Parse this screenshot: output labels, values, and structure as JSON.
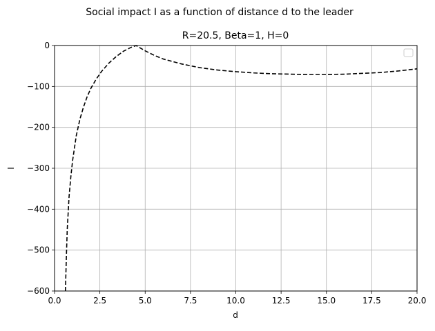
{
  "chart_data": {
    "type": "line",
    "suptitle": "Social impact I as a function of distance d to the leader",
    "title": "R=20.5, Beta=1, H=0",
    "xlabel": "d",
    "ylabel": "I",
    "xlim": [
      0,
      20
    ],
    "ylim": [
      -600,
      0
    ],
    "xticks": [
      0,
      2.5,
      5,
      7.5,
      10,
      12.5,
      15,
      17.5,
      20
    ],
    "xtick_labels": [
      "0.0",
      "2.5",
      "5.0",
      "7.5",
      "10.0",
      "12.5",
      "15.0",
      "17.5",
      "20.0"
    ],
    "yticks": [
      -600,
      -500,
      -400,
      -300,
      -200,
      -100,
      0
    ],
    "ytick_labels": [
      "−600",
      "−500",
      "−400",
      "−300",
      "−200",
      "−100",
      "0"
    ],
    "grid": true,
    "legend": {
      "position": "top-right",
      "entries": []
    },
    "series": [
      {
        "name": "",
        "style": "dashed",
        "color": "#000000",
        "x": [
          0.6,
          0.65,
          0.7,
          0.8,
          0.9,
          1.0,
          1.2,
          1.4,
          1.6,
          1.8,
          2.0,
          2.3,
          2.6,
          3.0,
          3.4,
          3.8,
          4.2,
          4.5,
          5.0,
          5.5,
          6.0,
          7.0,
          8.0,
          9.0,
          10.0,
          11.0,
          12.0,
          13.0,
          14.0,
          15.0,
          16.0,
          17.0,
          18.0,
          19.0,
          20.0
        ],
        "y": [
          -600,
          -520,
          -450,
          -370,
          -320,
          -280,
          -220,
          -180,
          -150,
          -125,
          -105,
          -82,
          -63,
          -43,
          -27,
          -14,
          -5,
          0,
          -13,
          -24,
          -33,
          -45,
          -54,
          -60,
          -64,
          -67,
          -69,
          -70,
          -71,
          -71,
          -70,
          -68,
          -66,
          -62,
          -57
        ]
      }
    ]
  }
}
